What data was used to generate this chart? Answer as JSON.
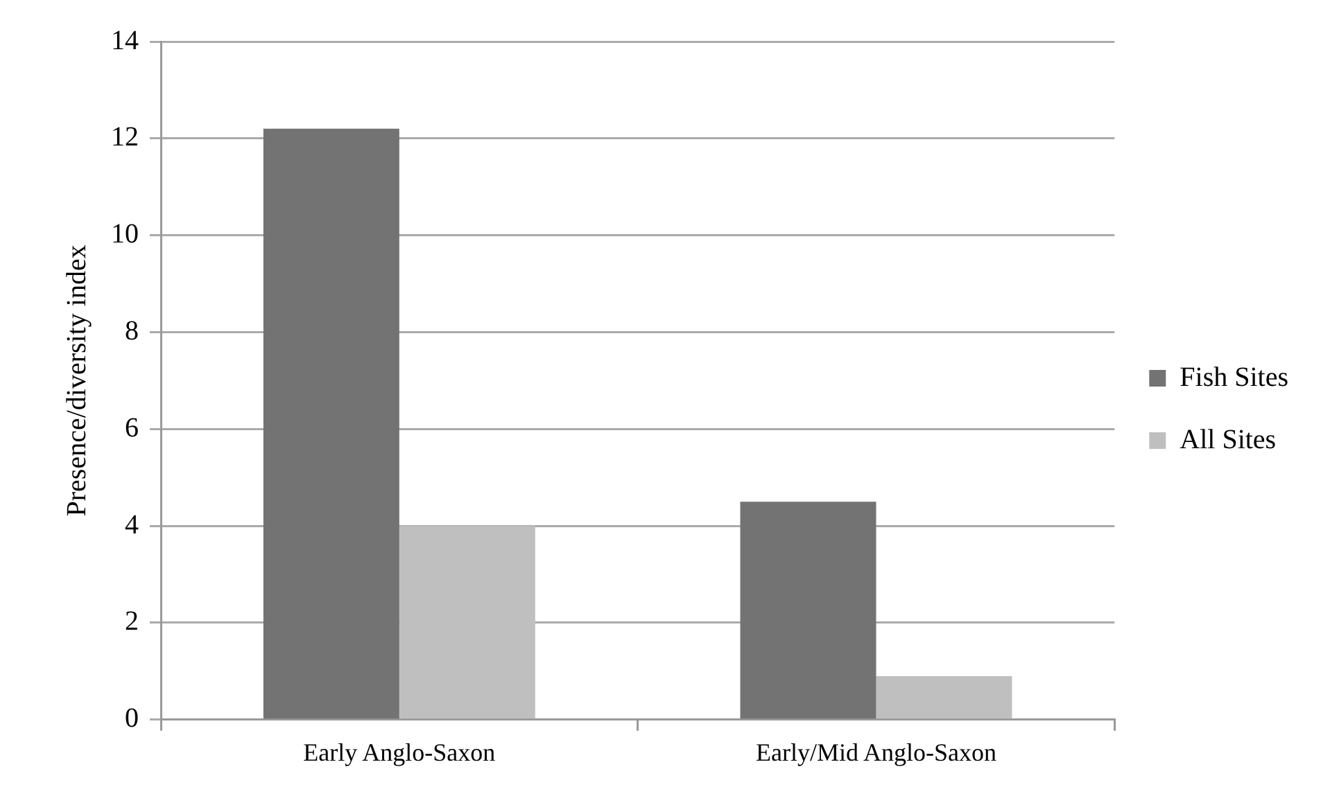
{
  "chart_data": {
    "type": "bar",
    "ylabel": "Presence/diversity index",
    "categories": [
      "Early Anglo-Saxon",
      "Early/Mid Anglo-Saxon"
    ],
    "series": [
      {
        "name": "Fish Sites",
        "color": "#737373",
        "values": [
          12.2,
          4.5
        ]
      },
      {
        "name": "All Sites",
        "color": "#bfbfbf",
        "values": [
          4.0,
          0.9
        ]
      }
    ],
    "ylim": [
      0,
      14
    ],
    "yticks": [
      0,
      2,
      4,
      6,
      8,
      10,
      12,
      14
    ],
    "grid": "y",
    "legend": "right"
  }
}
